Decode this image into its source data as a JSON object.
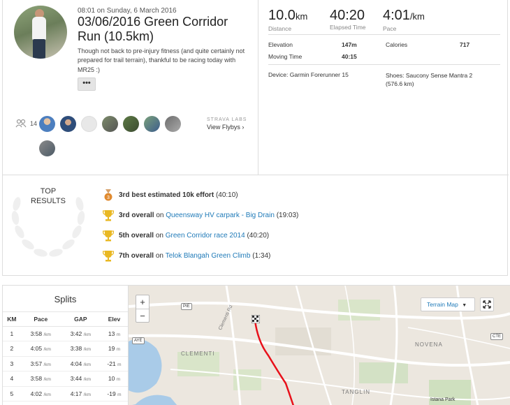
{
  "activity": {
    "datetime": "08:01 on Sunday, 6 March 2016",
    "title": "03/06/2016 Green Corridor Run (10.5km)",
    "description": "Though not back to pre-injury fitness (and quite certainly not prepared for trail terrain), thankful to be racing today with MR25 :)",
    "more_label": "•••"
  },
  "athletes": {
    "count": "14",
    "flyby_labs": "STRAVA LABS",
    "flyby_link": "View Flybys ›"
  },
  "stats": {
    "distance_value": "10.0",
    "distance_unit": "km",
    "distance_label": "Distance",
    "elapsed_value": "40:20",
    "elapsed_label": "Elapsed Time",
    "pace_value": "4:01",
    "pace_unit": "/km",
    "pace_label": "Pace",
    "elevation_label": "Elevation",
    "elevation_value": "147m",
    "calories_label": "Calories",
    "calories_value": "717",
    "moving_label": "Moving Time",
    "moving_value": "40:15",
    "device": "Device: Garmin Forerunner 15",
    "shoes": "Shoes: Saucony Sense Mantra 2 (576.6 km)"
  },
  "top_results": {
    "title_line1": "TOP",
    "title_line2": "RESULTS",
    "items": [
      {
        "rank": "3rd best estimated 10k effort",
        "pre": "",
        "segment": "",
        "time": "(40:10)",
        "medal": "bronze"
      },
      {
        "rank": "3rd overall",
        "pre": "on",
        "segment": "Queensway HV carpark - Big Drain",
        "time": "(19:03)",
        "medal": "trophy"
      },
      {
        "rank": "5th overall",
        "pre": "on",
        "segment": "Green Corridor race 2014",
        "time": "(40:20)",
        "medal": "trophy"
      },
      {
        "rank": "7th overall",
        "pre": "on",
        "segment": "Telok Blangah Green Climb",
        "time": "(1:34)",
        "medal": "trophy"
      }
    ]
  },
  "splits": {
    "title": "Splits",
    "headers": [
      "KM",
      "Pace",
      "GAP",
      "Elev"
    ],
    "unit": "/km",
    "rows": [
      {
        "km": "1",
        "pace": "3:58",
        "gap": "3:42",
        "elev": "13",
        "elev_unit": "m"
      },
      {
        "km": "2",
        "pace": "4:05",
        "gap": "3:38",
        "elev": "19",
        "elev_unit": "m"
      },
      {
        "km": "3",
        "pace": "3:57",
        "gap": "4:04",
        "elev": "-21",
        "elev_unit": "m"
      },
      {
        "km": "4",
        "pace": "3:58",
        "gap": "3:44",
        "elev": "10",
        "elev_unit": "m"
      },
      {
        "km": "5",
        "pace": "4:02",
        "gap": "4:17",
        "elev": "-19",
        "elev_unit": "m"
      }
    ]
  },
  "map": {
    "zoom_in": "+",
    "zoom_out": "−",
    "terrain_label": "Terrain Map",
    "places": [
      "CLEMENTI",
      "NOVENA",
      "TANGLIN",
      "Istana Park",
      "Clementi Rd"
    ],
    "roads": [
      "PIE",
      "AYE",
      "CTE"
    ],
    "route_color": "#e8101a"
  }
}
